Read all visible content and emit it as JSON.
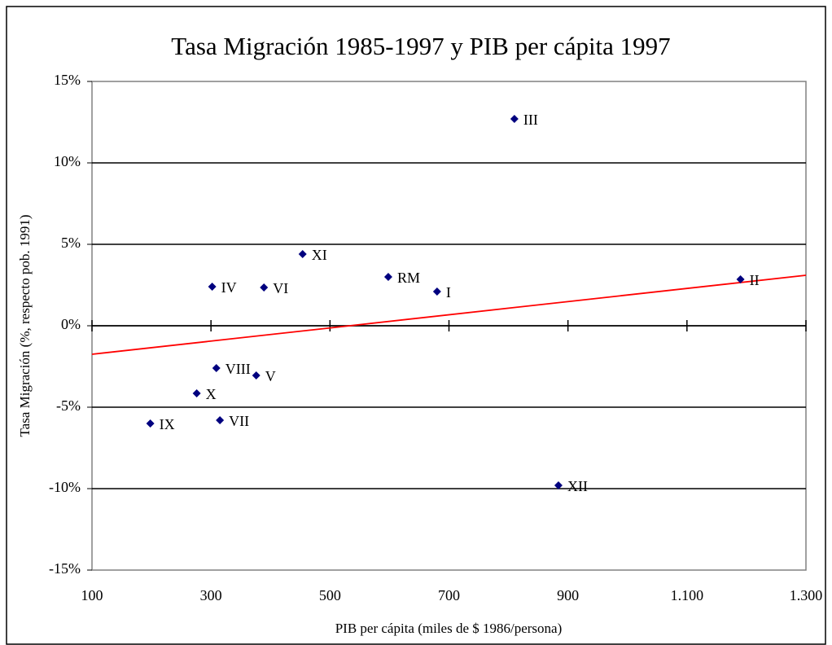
{
  "chart_data": {
    "type": "scatter",
    "title": "Tasa Migración 1985-1997 y PIB per cápita 1997",
    "x_label": "PIB per cápita (miles de $ 1986/persona)",
    "y_label": "Tasa Migración (%, respecto pob. 1991)",
    "labels": [
      "III",
      "XI",
      "IV",
      "VI",
      "RM",
      "I",
      "II",
      "VIII",
      "V",
      "X",
      "IX",
      "VII",
      "XII"
    ],
    "x": [
      810,
      454,
      302,
      389,
      598,
      680,
      1190,
      309,
      376,
      276,
      198,
      315,
      884
    ],
    "values": [
      12.7,
      4.4,
      2.4,
      2.35,
      3.0,
      2.1,
      2.85,
      -2.6,
      -3.05,
      -4.15,
      -6.0,
      -5.8,
      -9.8
    ],
    "color": "#00007f",
    "trendline": {
      "x": [
        100,
        1300
      ],
      "y": [
        -1.75,
        3.1
      ],
      "color": "#ff0000"
    },
    "xlim": [
      100,
      1300
    ],
    "ylim": [
      -15,
      15
    ],
    "xticks": [
      100,
      300,
      500,
      700,
      900,
      {
        "value": 1100,
        "label": "1.100"
      },
      {
        "value": 1300,
        "label": "1.300"
      }
    ],
    "yticks": [
      {
        "value": -15,
        "label": "-15%"
      },
      {
        "value": -10,
        "label": "-10%"
      },
      {
        "value": -5,
        "label": "-5%"
      },
      {
        "value": 0,
        "label": "0%"
      },
      {
        "value": 5,
        "label": "5%"
      },
      {
        "value": 10,
        "label": "10%"
      },
      {
        "value": 15,
        "label": "15%"
      }
    ],
    "grid": true
  }
}
